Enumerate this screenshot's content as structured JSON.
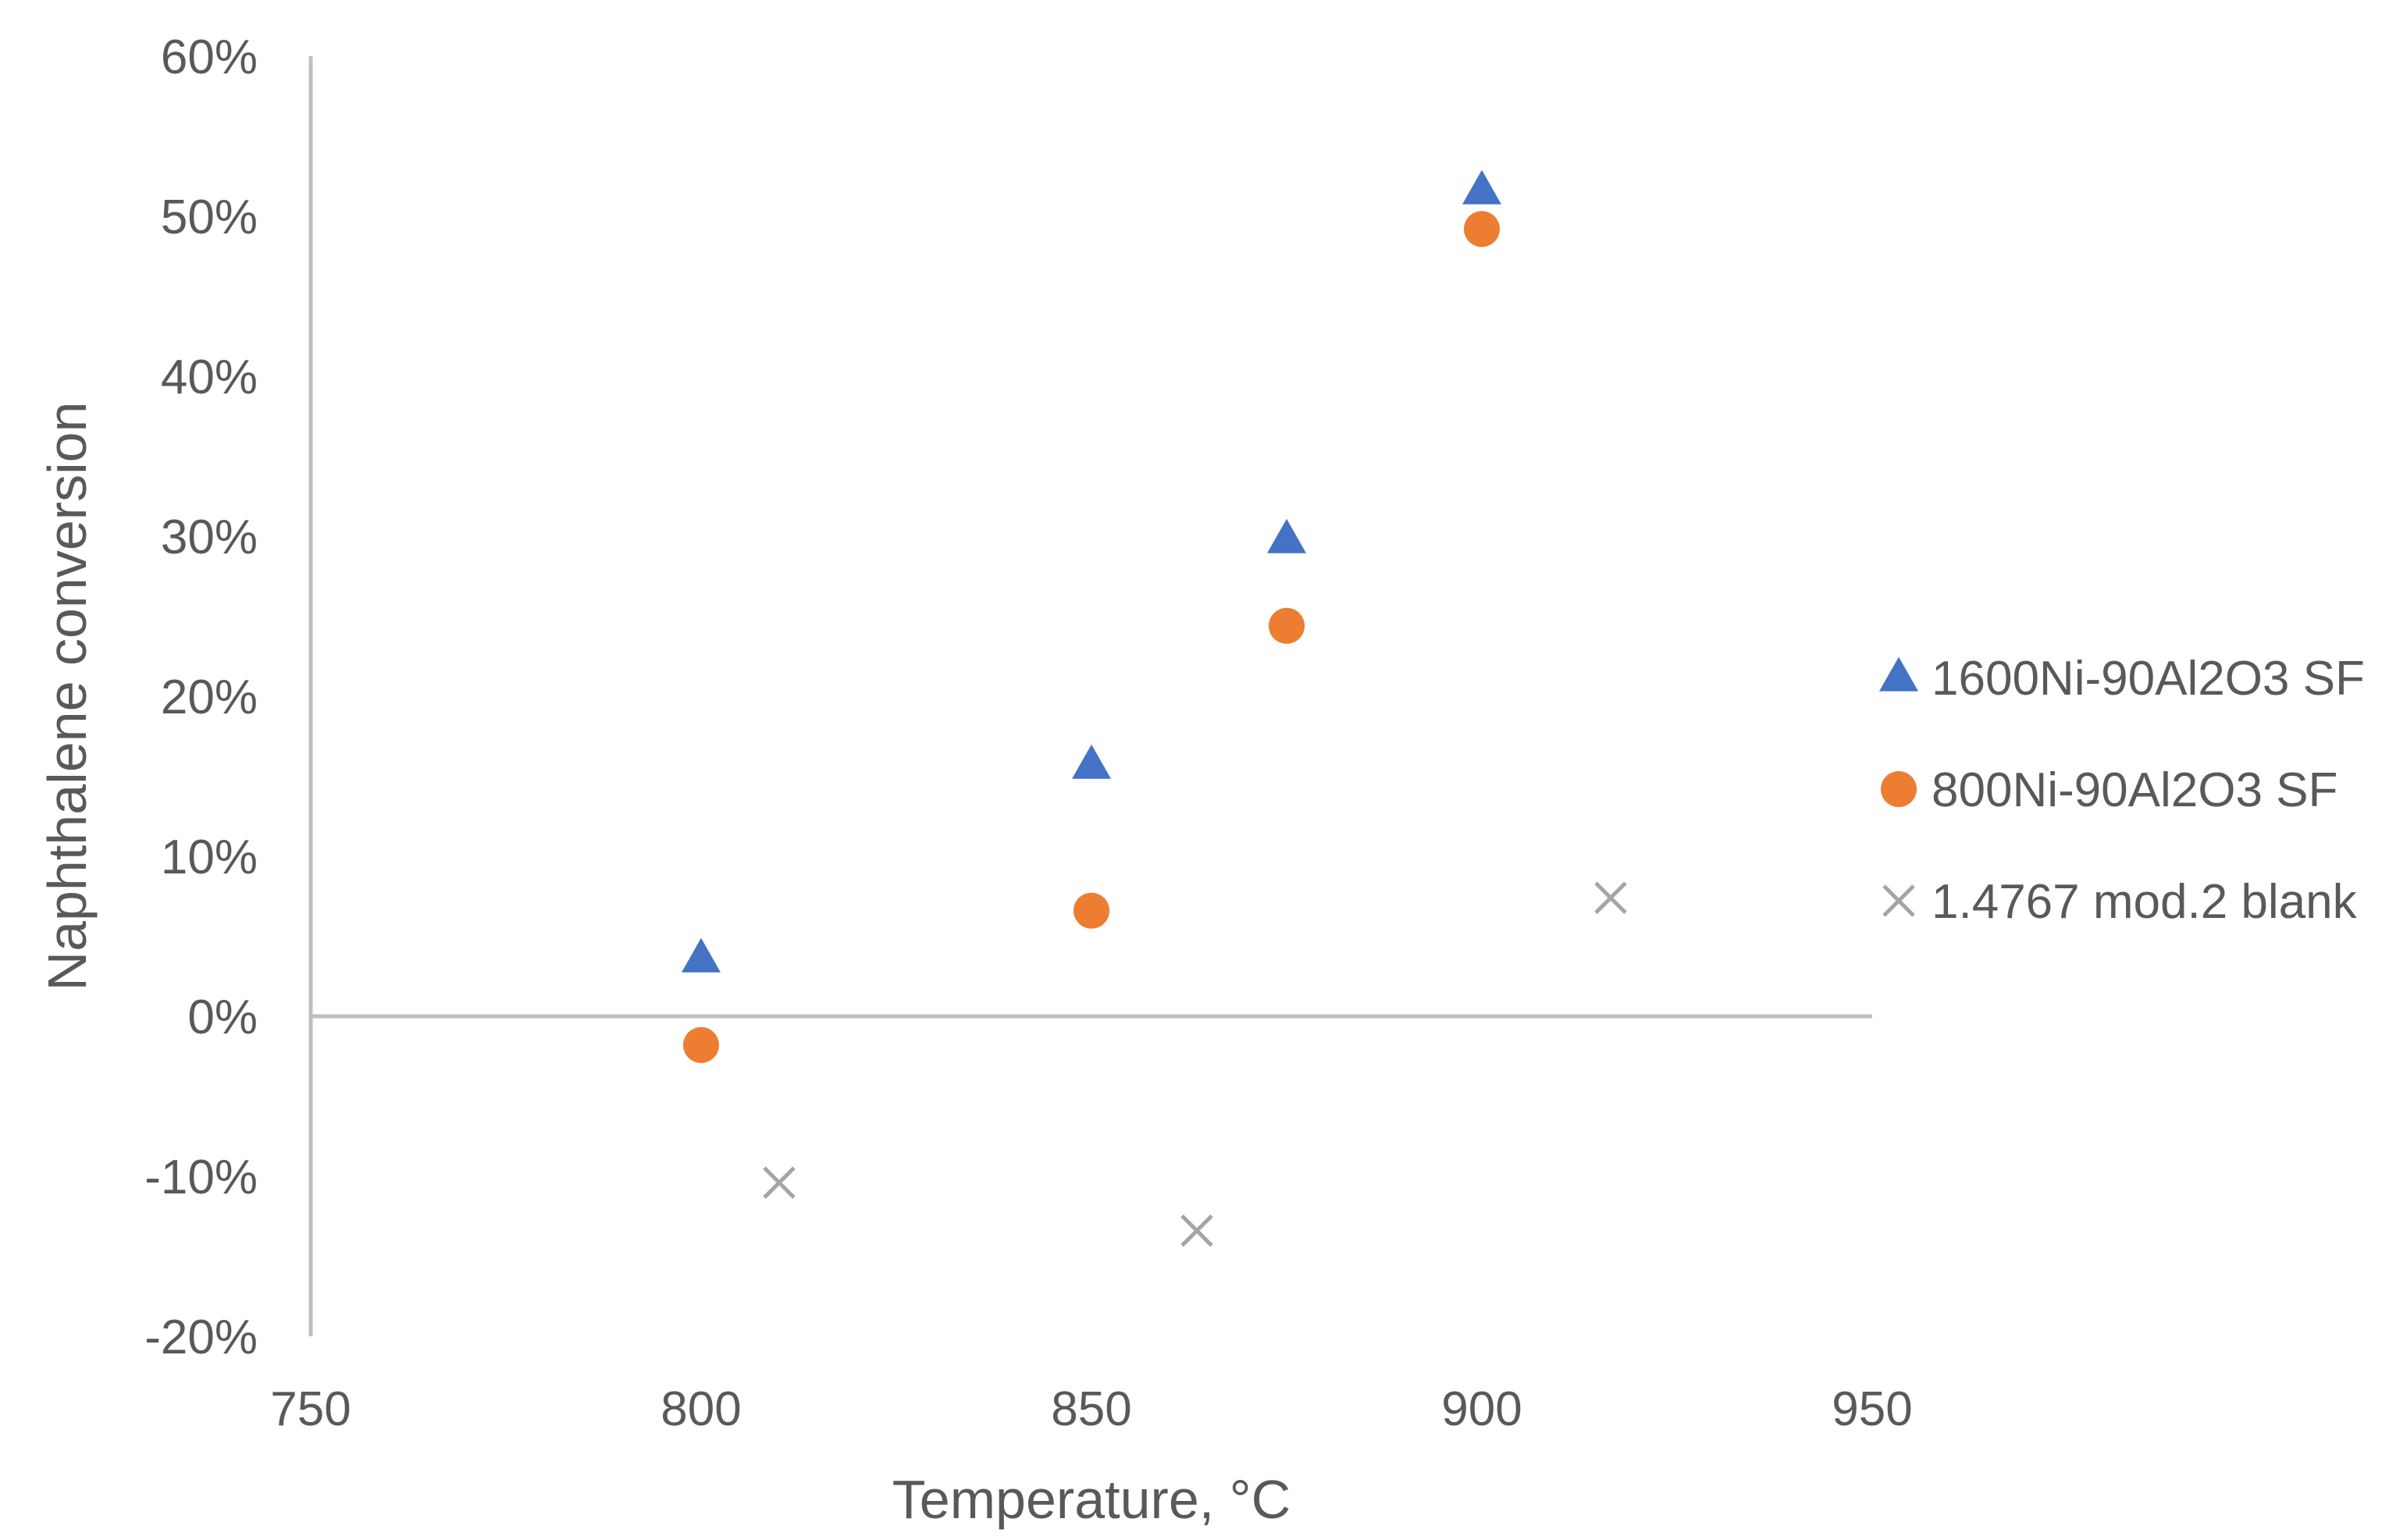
{
  "chart_data": {
    "type": "scatter",
    "title": "",
    "xlabel": "Temperature, °C",
    "ylabel": "Naphthalene conversion",
    "xlim": [
      750,
      950
    ],
    "ylim": [
      -0.2,
      0.6
    ],
    "x_ticks": [
      750,
      800,
      850,
      900,
      950
    ],
    "x_tick_labels": [
      "750",
      "800",
      "850",
      "900",
      "950"
    ],
    "y_ticks": [
      0.6,
      0.5,
      0.4,
      0.3,
      0.2,
      0.1,
      0.0,
      -0.1,
      -0.2
    ],
    "y_tick_labels": [
      "60%",
      "50%",
      "40%",
      "30%",
      "20%",
      "10%",
      "0%",
      "-10%",
      "-20%"
    ],
    "grid": false,
    "legend_position": "right",
    "series": [
      {
        "name": "1600Ni-90Al2O3 SF",
        "marker": "triangle",
        "color": "#4472C4",
        "points": [
          {
            "x": 800,
            "y": 0.036
          },
          {
            "x": 850,
            "y": 0.157
          },
          {
            "x": 875,
            "y": 0.298
          },
          {
            "x": 900,
            "y": 0.516
          }
        ]
      },
      {
        "name": "800Ni-90Al2O3 SF",
        "marker": "circle",
        "color": "#ED7D31",
        "points": [
          {
            "x": 800,
            "y": -0.018
          },
          {
            "x": 850,
            "y": 0.066
          },
          {
            "x": 875,
            "y": 0.244
          },
          {
            "x": 900,
            "y": 0.492
          }
        ]
      },
      {
        "name": "1.4767 mod.2 blank",
        "marker": "x",
        "color": "#A5A5A5",
        "points": [
          {
            "x": 810,
            "y": -0.104
          },
          {
            "x": 863.5,
            "y": -0.134
          },
          {
            "x": 916.5,
            "y": 0.074
          }
        ]
      }
    ]
  }
}
